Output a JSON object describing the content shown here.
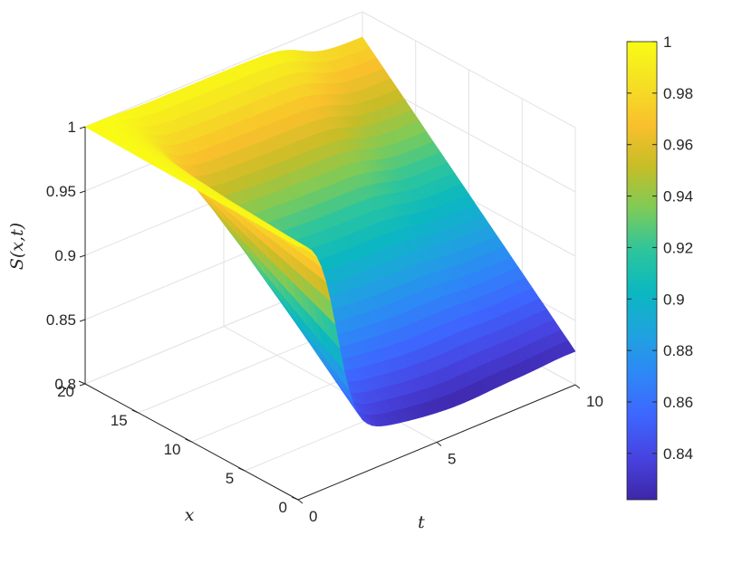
{
  "chart_data": {
    "type": "surface",
    "zlabel": "S(x,t)",
    "xlabel": "t",
    "ylabel": "x",
    "t_range": [
      0,
      10
    ],
    "x_range": [
      0,
      20
    ],
    "zlim": [
      0.8,
      1
    ],
    "t_ticks": [
      "0",
      "5",
      "10"
    ],
    "x_ticks": [
      "0",
      "5",
      "10",
      "15",
      "20"
    ],
    "z_ticks": [
      "0.8",
      "0.85",
      "0.9",
      "0.95",
      "1"
    ],
    "colorbar": {
      "range": [
        0.822,
        1
      ],
      "ticks": [
        "0.84",
        "0.86",
        "0.88",
        "0.9",
        "0.92",
        "0.94",
        "0.96",
        "0.98",
        "1"
      ],
      "colormap": [
        "#3e26a8",
        "#4743e0",
        "#3e65fe",
        "#2e87f7",
        "#1fa3de",
        "#0bb8c0",
        "#2ec59c",
        "#7ecb58",
        "#c6bd27",
        "#f9c02c",
        "#f5e024",
        "#f9fb15"
      ]
    },
    "surface_profile": {
      "t": [
        0,
        2,
        4,
        6,
        8,
        10
      ],
      "S_at_x0": [
        1.0,
        0.826,
        0.822,
        0.826,
        0.823,
        0.822
      ],
      "S_at_x20": [
        1.0,
        0.998,
        0.99,
        0.989,
        0.986,
        0.985
      ]
    },
    "grid": true
  }
}
